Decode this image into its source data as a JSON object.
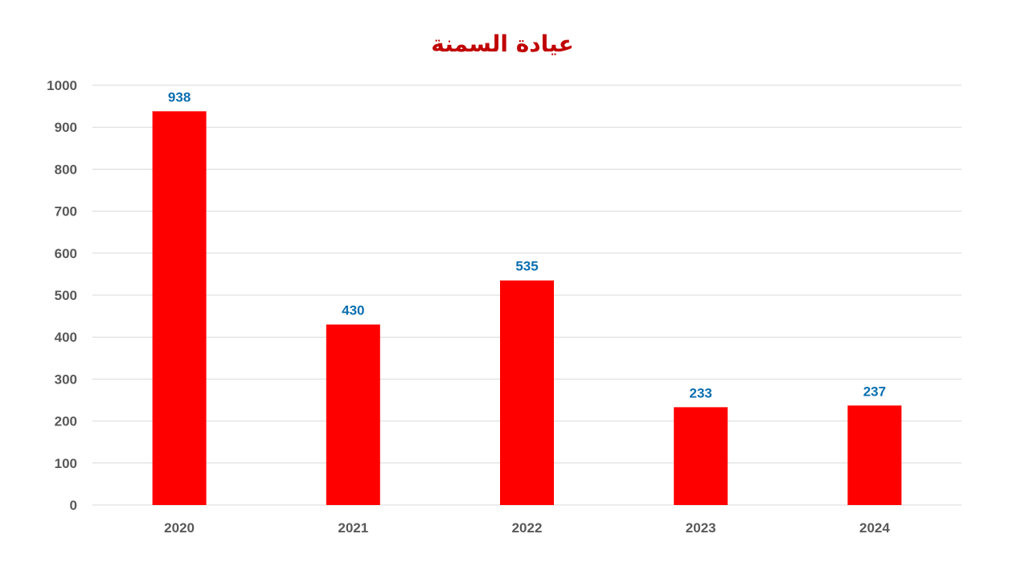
{
  "chart_data": {
    "type": "bar",
    "title": "عيادة السمنة",
    "categories": [
      "2020",
      "2021",
      "2022",
      "2023",
      "2024"
    ],
    "values": [
      938,
      430,
      535,
      233,
      237
    ],
    "xlabel": "",
    "ylabel": "",
    "ylim": [
      0,
      1000
    ],
    "y_ticks": [
      0,
      100,
      200,
      300,
      400,
      500,
      600,
      700,
      800,
      900,
      1000
    ],
    "grid": true,
    "legend": "none",
    "bar_color": "#ff0000",
    "data_label_color": "#0b6fb0",
    "title_color": "#c00000"
  }
}
